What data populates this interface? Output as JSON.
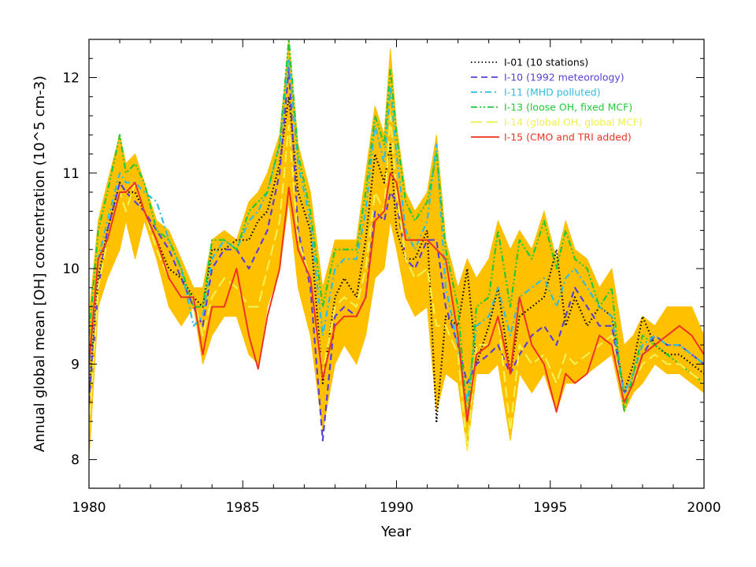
{
  "chart_data": {
    "type": "line",
    "title": "",
    "xlabel": "Year",
    "ylabel": "Annual global mean [OH] concentration (10^5 cm-3)",
    "xlim": [
      1980,
      2000
    ],
    "ylim": [
      7.7,
      12.4
    ],
    "x_ticks": [
      "1980",
      "1985",
      "1990",
      "1995",
      "2000"
    ],
    "y_ticks": [
      "8",
      "9",
      "10",
      "11",
      "12"
    ],
    "grid": false,
    "legend_position": "top-right",
    "band": {
      "color": "#ffc000",
      "x": [
        1980.0,
        1980.3,
        1980.6,
        1981.0,
        1981.2,
        1981.5,
        1981.8,
        1982.2,
        1982.6,
        1983.0,
        1983.4,
        1983.7,
        1984.0,
        1984.4,
        1984.8,
        1985.2,
        1985.5,
        1985.8,
        1986.2,
        1986.5,
        1986.8,
        1987.2,
        1987.6,
        1988.0,
        1988.3,
        1988.7,
        1989.0,
        1989.3,
        1989.6,
        1989.8,
        1990.0,
        1990.3,
        1990.6,
        1991.0,
        1991.3,
        1991.6,
        1992.0,
        1992.3,
        1992.6,
        1993.0,
        1993.3,
        1993.7,
        1994.0,
        1994.4,
        1994.8,
        1995.2,
        1995.5,
        1995.8,
        1996.2,
        1996.6,
        1997.0,
        1997.4,
        1997.7,
        1998.0,
        1998.4,
        1998.8,
        1999.2,
        1999.6,
        2000.0
      ],
      "upper": [
        9.5,
        10.5,
        10.9,
        11.4,
        11.1,
        11.2,
        10.9,
        10.5,
        10.4,
        10.1,
        9.8,
        9.8,
        10.3,
        10.4,
        10.3,
        10.7,
        10.8,
        11.0,
        11.4,
        12.4,
        11.3,
        10.8,
        9.8,
        10.3,
        10.3,
        10.3,
        11.0,
        11.7,
        11.4,
        12.3,
        11.5,
        10.8,
        10.6,
        10.8,
        11.4,
        10.3,
        9.8,
        10.1,
        9.9,
        10.1,
        10.5,
        10.2,
        10.4,
        10.2,
        10.6,
        10.1,
        10.5,
        10.2,
        10.1,
        9.8,
        10.0,
        9.2,
        9.3,
        9.5,
        9.4,
        9.6,
        9.6,
        9.6,
        9.3
      ],
      "lower": [
        8.0,
        9.6,
        9.9,
        10.2,
        10.5,
        10.1,
        10.5,
        10.1,
        9.6,
        9.4,
        9.6,
        9.0,
        9.3,
        9.5,
        9.5,
        9.1,
        9.0,
        9.6,
        10.0,
        10.7,
        9.8,
        9.3,
        8.3,
        9.0,
        9.2,
        9.0,
        9.3,
        9.9,
        10.0,
        10.5,
        10.2,
        9.7,
        9.5,
        9.6,
        8.5,
        8.9,
        8.8,
        8.1,
        8.9,
        8.9,
        9.0,
        8.2,
        8.9,
        8.7,
        8.9,
        8.5,
        8.8,
        8.8,
        8.9,
        9.0,
        9.1,
        8.5,
        8.7,
        8.8,
        9.0,
        8.9,
        8.9,
        8.8,
        8.7
      ]
    },
    "x": [
      1980.0,
      1980.3,
      1980.6,
      1981.0,
      1981.2,
      1981.5,
      1981.8,
      1982.2,
      1982.6,
      1983.0,
      1983.4,
      1983.7,
      1984.0,
      1984.4,
      1984.8,
      1985.2,
      1985.5,
      1985.8,
      1986.2,
      1986.5,
      1986.8,
      1987.2,
      1987.6,
      1988.0,
      1988.3,
      1988.7,
      1989.0,
      1989.3,
      1989.6,
      1989.8,
      1990.0,
      1990.3,
      1990.6,
      1991.0,
      1991.3,
      1991.6,
      1992.0,
      1992.3,
      1992.6,
      1993.0,
      1993.3,
      1993.7,
      1994.0,
      1994.4,
      1994.8,
      1995.2,
      1995.5,
      1995.8,
      1996.2,
      1996.6,
      1997.0,
      1997.4,
      1997.7,
      1998.0,
      1998.4,
      1998.8,
      1999.2,
      1999.6,
      2000.0
    ],
    "series": [
      {
        "name": "I-01 (10 stations)",
        "color": "#000000",
        "dash": "dotted",
        "values": [
          8.7,
          9.9,
          10.4,
          10.9,
          10.8,
          10.8,
          10.6,
          10.3,
          10.0,
          9.9,
          9.7,
          9.6,
          10.2,
          10.2,
          10.3,
          10.3,
          10.5,
          10.6,
          11.1,
          11.8,
          10.8,
          10.4,
          8.8,
          9.7,
          9.9,
          9.7,
          10.3,
          11.2,
          10.9,
          11.3,
          10.4,
          10.1,
          10.1,
          10.4,
          8.4,
          9.5,
          9.4,
          10.0,
          9.0,
          9.4,
          9.8,
          8.9,
          9.5,
          9.6,
          9.7,
          10.2,
          9.4,
          9.7,
          9.4,
          9.6,
          9.5,
          8.7,
          9.0,
          9.5,
          9.2,
          9.1,
          9.1,
          9.0,
          8.9
        ]
      },
      {
        "name": "I-10 (1992 meteorology)",
        "color": "#5b3fd6",
        "dash": "dashed",
        "values": [
          8.6,
          9.8,
          10.4,
          10.9,
          10.8,
          10.7,
          10.6,
          10.4,
          10.2,
          9.9,
          9.6,
          9.4,
          10.0,
          10.2,
          10.2,
          10.0,
          10.2,
          10.4,
          11.0,
          12.1,
          10.4,
          9.8,
          8.2,
          9.5,
          9.6,
          9.5,
          9.7,
          10.6,
          10.5,
          10.8,
          10.7,
          10.1,
          10.0,
          10.3,
          10.3,
          9.6,
          9.2,
          8.8,
          9.0,
          9.1,
          9.2,
          8.9,
          9.1,
          9.3,
          9.4,
          9.2,
          9.5,
          9.8,
          9.6,
          9.4,
          9.4,
          8.7,
          8.8,
          9.1,
          9.3,
          9.2,
          9.2,
          9.1,
          9.0
        ]
      },
      {
        "name": "I-11 (MHD polluted)",
        "color": "#2ebde0",
        "dash": "dashdot",
        "values": [
          8.9,
          10.1,
          10.5,
          11.0,
          10.9,
          10.9,
          10.8,
          10.7,
          10.3,
          10.0,
          9.4,
          9.5,
          10.1,
          10.3,
          10.2,
          10.5,
          10.6,
          10.8,
          11.3,
          12.2,
          11.1,
          10.5,
          9.3,
          10.0,
          10.1,
          10.1,
          10.6,
          11.5,
          11.1,
          11.9,
          11.2,
          10.4,
          10.2,
          10.5,
          11.3,
          9.8,
          9.2,
          8.6,
          9.4,
          9.5,
          9.8,
          9.3,
          9.7,
          9.8,
          9.9,
          9.6,
          9.9,
          10.0,
          9.8,
          9.6,
          9.5,
          8.7,
          8.9,
          9.2,
          9.3,
          9.2,
          9.2,
          9.1,
          9.0
        ]
      },
      {
        "name": "I-13 (loose OH, fixed MCF)",
        "color": "#22c93a",
        "dash": "dashdotdot",
        "values": [
          9.3,
          10.4,
          10.8,
          11.4,
          11.0,
          11.1,
          10.9,
          10.4,
          10.3,
          10.0,
          9.6,
          9.6,
          10.3,
          10.3,
          10.2,
          10.6,
          10.7,
          10.8,
          11.3,
          12.4,
          11.2,
          10.6,
          9.6,
          10.2,
          10.2,
          10.2,
          10.8,
          11.6,
          11.3,
          12.1,
          11.4,
          10.7,
          10.5,
          10.7,
          11.2,
          10.2,
          9.6,
          8.4,
          9.6,
          9.7,
          10.4,
          9.6,
          10.3,
          10.1,
          10.5,
          10.0,
          10.4,
          10.1,
          10.0,
          9.6,
          9.8,
          8.5,
          8.9,
          9.3,
          9.2,
          9.1,
          9.0,
          8.9,
          8.8
        ]
      },
      {
        "name": "I-14 (global OH, global MCF)",
        "color": "#f0f050",
        "dash": "longdash",
        "values": [
          8.3,
          9.8,
          10.3,
          10.8,
          10.6,
          10.9,
          10.6,
          10.2,
          9.9,
          9.7,
          9.7,
          9.3,
          9.7,
          9.9,
          9.8,
          9.6,
          9.6,
          10.0,
          10.5,
          11.5,
          10.3,
          9.9,
          8.9,
          9.6,
          9.7,
          9.6,
          10.0,
          10.8,
          10.6,
          11.6,
          10.8,
          10.1,
          9.9,
          10.0,
          9.4,
          9.4,
          9.1,
          8.1,
          9.2,
          9.2,
          9.5,
          8.3,
          9.2,
          9.0,
          9.1,
          8.8,
          9.1,
          9.0,
          9.1,
          9.2,
          9.3,
          8.6,
          8.8,
          9.0,
          9.1,
          9.0,
          9.0,
          8.9,
          8.8
        ]
      },
      {
        "name": "I-15 (CMO and TRI added)",
        "color": "#ee3322",
        "dash": "solid",
        "values": [
          9.0,
          10.1,
          10.3,
          10.8,
          10.8,
          10.9,
          10.6,
          10.3,
          9.9,
          9.7,
          9.7,
          9.1,
          9.6,
          9.6,
          10.0,
          9.3,
          8.95,
          9.5,
          10.0,
          10.85,
          10.2,
          9.9,
          8.85,
          9.4,
          9.5,
          9.5,
          9.7,
          10.5,
          10.6,
          11.0,
          10.9,
          10.3,
          10.3,
          10.3,
          10.2,
          10.1,
          9.3,
          8.4,
          9.1,
          9.2,
          9.5,
          8.9,
          9.7,
          9.2,
          9.0,
          8.5,
          8.9,
          8.8,
          8.9,
          9.3,
          9.2,
          8.6,
          8.8,
          9.1,
          9.2,
          9.3,
          9.4,
          9.3,
          9.1
        ]
      }
    ]
  }
}
